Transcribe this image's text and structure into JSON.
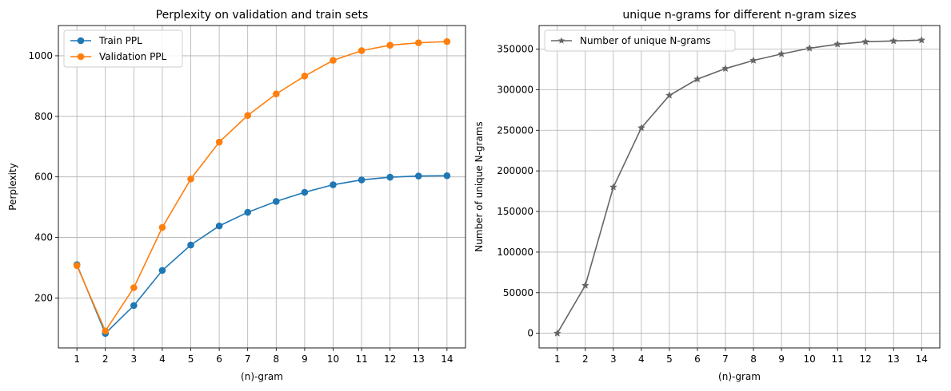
{
  "chart_data": [
    {
      "type": "line",
      "title": "Perplexity on validation and train sets",
      "xlabel": "(n)-gram",
      "ylabel": "Perplexity",
      "x": [
        1,
        2,
        3,
        4,
        5,
        6,
        7,
        8,
        9,
        10,
        11,
        12,
        13,
        14
      ],
      "xlim": [
        0.35,
        14.65
      ],
      "ylim": [
        35,
        1100
      ],
      "yticks": [
        200,
        400,
        600,
        800,
        1000
      ],
      "grid": true,
      "legend": "top-left",
      "series": [
        {
          "name": "Train PPL",
          "color": "#1f77b4",
          "marker": "circle",
          "values": [
            310,
            83,
            175,
            291,
            375,
            438,
            483,
            519,
            549,
            574,
            590,
            599,
            603,
            604
          ]
        },
        {
          "name": "Validation PPL",
          "color": "#ff7f0e",
          "marker": "circle",
          "values": [
            307,
            91,
            234,
            433,
            593,
            715,
            803,
            874,
            933,
            985,
            1017,
            1035,
            1043,
            1047
          ]
        }
      ]
    },
    {
      "type": "line",
      "title": "unique n-grams for different n-gram sizes",
      "xlabel": "(n)-gram",
      "ylabel": "Number of unique N-grams",
      "x": [
        1,
        2,
        3,
        4,
        5,
        6,
        7,
        8,
        9,
        10,
        11,
        12,
        13,
        14
      ],
      "xlim": [
        0.35,
        14.65
      ],
      "ylim": [
        -18000,
        379000
      ],
      "yticks": [
        0,
        50000,
        100000,
        150000,
        200000,
        250000,
        300000,
        350000
      ],
      "grid": true,
      "legend": "top-left",
      "series": [
        {
          "name": "Number of unique N-grams",
          "color": "#666666",
          "marker": "star",
          "values": [
            0,
            59000,
            180000,
            253000,
            293000,
            313000,
            326000,
            336000,
            344000,
            351000,
            356000,
            359000,
            360000,
            361000
          ]
        }
      ]
    }
  ]
}
